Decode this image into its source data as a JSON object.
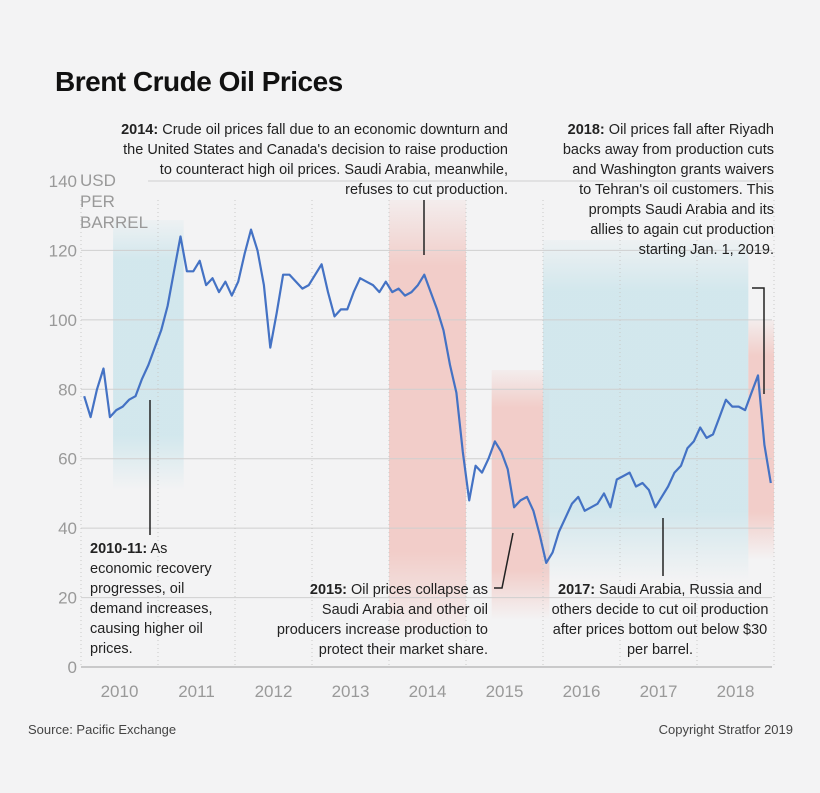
{
  "title": "Brent Crude Oil Prices",
  "source": "Source: Pacific Exchange",
  "copyright": "Copyright Stratfor 2019",
  "colors": {
    "line": "#4472c4",
    "shade_red": "#f2c9c4",
    "shade_blue": "#cfe6ec",
    "grid": "#cfcfcf",
    "axis_text": "#999999"
  },
  "annotations": {
    "a2014": {
      "head": "2014:",
      "text": " Crude oil prices fall due to an economic downturn and the United States and Canada's decision to raise production to counteract high oil prices. Saudi Arabia, meanwhile, refuses to cut production."
    },
    "a2018": {
      "head": "2018:",
      "text": " Oil prices fall after Riyadh backs away from production cuts and Washington grants waivers to Tehran's oil customers. This prompts Saudi Arabia and its allies to again cut production starting Jan. 1, 2019."
    },
    "a2010": {
      "head": "2010-11:",
      "text": " As economic recovery progresses, oil demand increases, causing higher oil prices."
    },
    "a2015": {
      "head": "2015:",
      "text": " Oil prices collapse as Saudi Arabia and other oil producers increase production to protect their market share."
    },
    "a2017": {
      "head": "2017:",
      "text": " Saudi Arabia, Russia and others decide to cut oil production after prices bottom out below $30 per barrel."
    }
  },
  "chart_data": {
    "type": "line",
    "title": "Brent Crude Oil Prices",
    "ylabel": "USD PER BARREL",
    "xlabel": "",
    "ylim": [
      0,
      140
    ],
    "yticks": [
      0,
      20,
      40,
      60,
      80,
      100,
      120,
      140
    ],
    "xlim": [
      "2010-01",
      "2018-12"
    ],
    "xticks": [
      "2010",
      "2011",
      "2012",
      "2013",
      "2014",
      "2015",
      "2016",
      "2017",
      "2018"
    ],
    "grid": true,
    "shaded_periods": [
      {
        "start": "2010-06",
        "end": "2011-04",
        "color": "blue"
      },
      {
        "start": "2014-01",
        "end": "2014-12",
        "color": "red"
      },
      {
        "start": "2015-05",
        "end": "2016-01",
        "color": "red"
      },
      {
        "start": "2016-01",
        "end": "2018-08",
        "color": "blue"
      },
      {
        "start": "2018-09",
        "end": "2018-12",
        "color": "red"
      }
    ],
    "x": [
      "2010-01",
      "2010-02",
      "2010-03",
      "2010-04",
      "2010-05",
      "2010-06",
      "2010-07",
      "2010-08",
      "2010-09",
      "2010-10",
      "2010-11",
      "2010-12",
      "2011-01",
      "2011-02",
      "2011-03",
      "2011-04",
      "2011-05",
      "2011-06",
      "2011-07",
      "2011-08",
      "2011-09",
      "2011-10",
      "2011-11",
      "2011-12",
      "2012-01",
      "2012-02",
      "2012-03",
      "2012-04",
      "2012-05",
      "2012-06",
      "2012-07",
      "2012-08",
      "2012-09",
      "2012-10",
      "2012-11",
      "2012-12",
      "2013-01",
      "2013-02",
      "2013-03",
      "2013-04",
      "2013-05",
      "2013-06",
      "2013-07",
      "2013-08",
      "2013-09",
      "2013-10",
      "2013-11",
      "2013-12",
      "2014-01",
      "2014-02",
      "2014-03",
      "2014-04",
      "2014-05",
      "2014-06",
      "2014-07",
      "2014-08",
      "2014-09",
      "2014-10",
      "2014-11",
      "2014-12",
      "2015-01",
      "2015-02",
      "2015-03",
      "2015-04",
      "2015-05",
      "2015-06",
      "2015-07",
      "2015-08",
      "2015-09",
      "2015-10",
      "2015-11",
      "2015-12",
      "2016-01",
      "2016-02",
      "2016-03",
      "2016-04",
      "2016-05",
      "2016-06",
      "2016-07",
      "2016-08",
      "2016-09",
      "2016-10",
      "2016-11",
      "2016-12",
      "2017-01",
      "2017-02",
      "2017-03",
      "2017-04",
      "2017-05",
      "2017-06",
      "2017-07",
      "2017-08",
      "2017-09",
      "2017-10",
      "2017-11",
      "2017-12",
      "2018-01",
      "2018-02",
      "2018-03",
      "2018-04",
      "2018-05",
      "2018-06",
      "2018-07",
      "2018-08",
      "2018-09",
      "2018-10",
      "2018-11",
      "2018-12"
    ],
    "series": [
      {
        "values": [
          78,
          72,
          80,
          86,
          72,
          74,
          75,
          77,
          78,
          83,
          87,
          92,
          97,
          104,
          114,
          124,
          114,
          114,
          117,
          110,
          112,
          108,
          111,
          107,
          111,
          119,
          126,
          120,
          110,
          92,
          102,
          113,
          113,
          111,
          109,
          110,
          113,
          116,
          108,
          101,
          103,
          103,
          108,
          112,
          111,
          110,
          108,
          111,
          108,
          109,
          107,
          108,
          110,
          113,
          108,
          103,
          97,
          87,
          79,
          62,
          48,
          58,
          56,
          60,
          65,
          62,
          57,
          46,
          48,
          49,
          45,
          38,
          30,
          33,
          39,
          43,
          47,
          49,
          45,
          46,
          47,
          50,
          46,
          54,
          55,
          56,
          52,
          53,
          51,
          46,
          49,
          52,
          56,
          58,
          63,
          65,
          69,
          66,
          67,
          72,
          77,
          75,
          75,
          74,
          79,
          84,
          64,
          53
        ]
      }
    ]
  }
}
